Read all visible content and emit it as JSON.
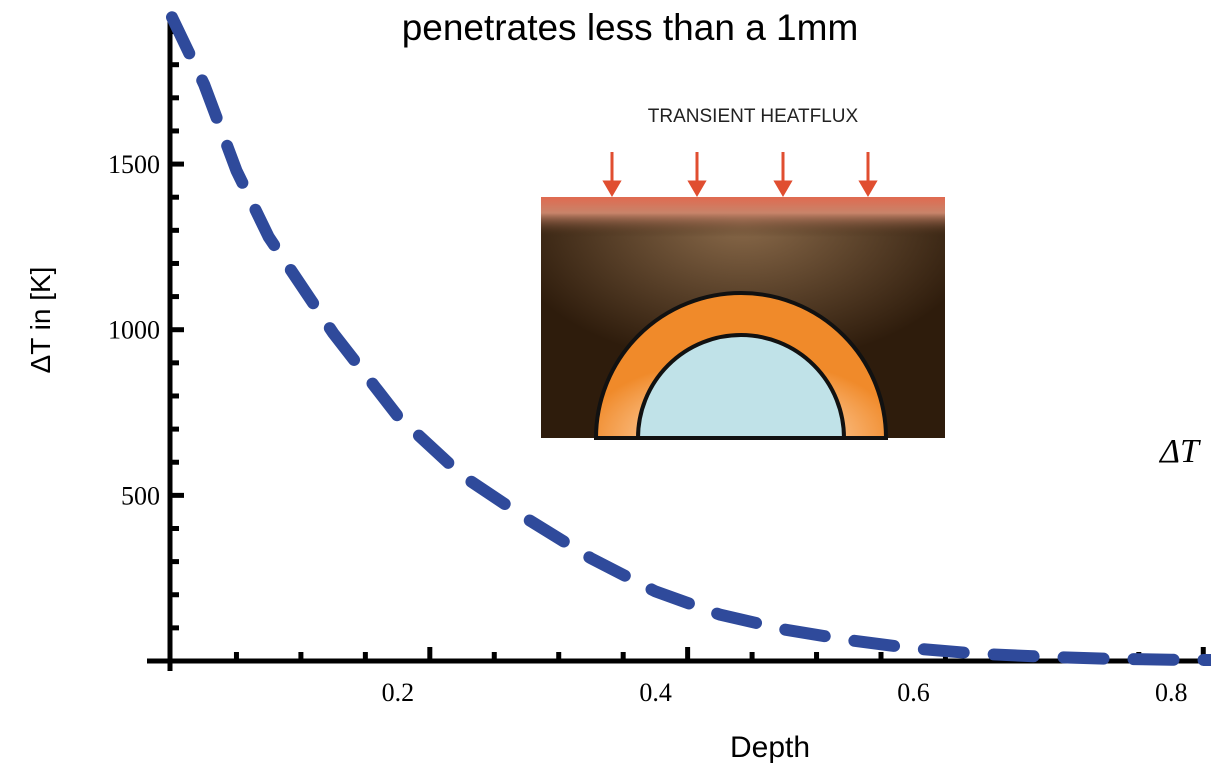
{
  "chart_data": {
    "type": "line",
    "title": "penetrates less than a 1mm",
    "ylabel": "ΔT in [K]",
    "xlabel": "Depth",
    "inset_label": "TRANSIENT HEATFLUX",
    "annotation": "ΔT",
    "x": [
      0,
      0.025,
      0.05,
      0.075,
      0.125,
      0.175,
      0.225,
      0.275,
      0.325,
      0.375,
      0.425,
      0.475,
      0.525,
      0.575,
      0.625,
      0.675,
      0.725,
      0.775,
      0.806
    ],
    "series": [
      {
        "color": "#2f4a9b",
        "values": [
          1943,
          1740,
          1480,
          1280,
          990,
          740,
          560,
          430,
          310,
          210,
          140,
          95,
          63,
          38,
          22,
          13,
          7,
          4,
          3
        ]
      }
    ],
    "xlim": [
      0,
      0.806
    ],
    "ylim": [
      0,
      1950
    ],
    "xticks": [
      0.2,
      0.4,
      0.6,
      0.8
    ],
    "yticks": [
      500,
      1000,
      1500
    ],
    "xminorticks": [
      0.05,
      0.1,
      0.15,
      0.25,
      0.3,
      0.35,
      0.45,
      0.5,
      0.55,
      0.65,
      0.7,
      0.75
    ],
    "yminorticks": [
      100,
      200,
      300,
      400,
      600,
      700,
      800,
      900,
      1100,
      1200,
      1300,
      1400,
      1600,
      1700,
      1800,
      1900
    ]
  }
}
